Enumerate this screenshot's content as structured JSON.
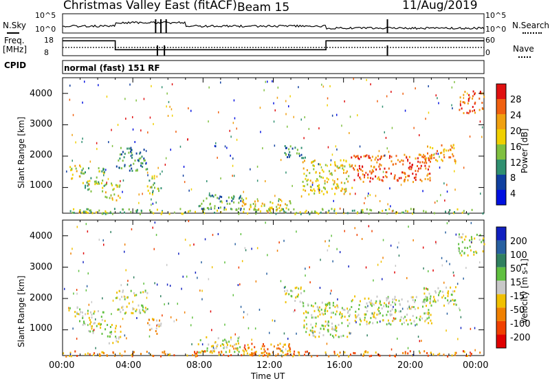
{
  "header": {
    "station": "Christmas Valley East (fitACF)",
    "beam": "Beam 15",
    "date": "11/Aug/2019"
  },
  "noise_panel": {
    "left_label": "N.Sky",
    "right_label": "N.Search",
    "left_ticks": [
      "10^5",
      "10^0"
    ],
    "right_ticks": [
      "10^5",
      "10^0"
    ]
  },
  "freq_panel": {
    "left_label_1": "Freq.",
    "left_label_2": "[MHz]",
    "left_ticks": [
      "18",
      "8"
    ],
    "right_label": "Nave",
    "right_ticks": [
      "60",
      "0"
    ],
    "freq_steps": [
      {
        "start_hour": 0,
        "end_hour": 3.0,
        "freq_mhz": 16
      },
      {
        "start_hour": 3.0,
        "end_hour": 15.0,
        "freq_mhz": 10
      },
      {
        "start_hour": 15.0,
        "end_hour": 24.0,
        "freq_mhz": 16
      }
    ]
  },
  "cpid": {
    "label": "CPID",
    "value": "normal (fast) 151 RF"
  },
  "chart_data": [
    {
      "type": "heatmap",
      "name": "power",
      "xlabel": "",
      "ylabel": "Slant Range [km]",
      "xlim": [
        0,
        24
      ],
      "ylim": [
        180,
        4500
      ],
      "y_ticks": [
        "1000",
        "2000",
        "3000",
        "4000"
      ],
      "colorbar": {
        "label": "Power [dB]",
        "ticks": [
          "28",
          "24",
          "20",
          "16",
          "12",
          "8",
          "4"
        ],
        "colors": [
          "#e01010",
          "#f06010",
          "#f0a010",
          "#f0d000",
          "#80c040",
          "#309070",
          "#1040a0",
          "#0010e0"
        ]
      },
      "regions": [
        {
          "t0": 0.3,
          "t1": 1.0,
          "r0": 1300,
          "r1": 1750,
          "level": 3
        },
        {
          "t0": 1.0,
          "t1": 2.4,
          "r0": 900,
          "r1": 1650,
          "level": 4
        },
        {
          "t0": 2.4,
          "t1": 3.3,
          "r0": 600,
          "r1": 1200,
          "level": 3
        },
        {
          "t0": 3.0,
          "t1": 4.8,
          "r0": 1550,
          "r1": 2300,
          "level": 5
        },
        {
          "t0": 4.8,
          "t1": 5.6,
          "r0": 800,
          "r1": 1400,
          "level": 4
        },
        {
          "t0": 7.7,
          "t1": 10.2,
          "r0": 300,
          "r1": 800,
          "level": 5
        },
        {
          "t0": 10.0,
          "t1": 13.0,
          "r0": 250,
          "r1": 700,
          "level": 3
        },
        {
          "t0": 12.6,
          "t1": 13.8,
          "r0": 1900,
          "r1": 2400,
          "level": 5
        },
        {
          "t0": 13.6,
          "t1": 16.5,
          "r0": 800,
          "r1": 1900,
          "level": 3
        },
        {
          "t0": 16.4,
          "t1": 21.0,
          "r0": 1200,
          "r1": 2100,
          "level": 1
        },
        {
          "t0": 20.5,
          "t1": 22.4,
          "r0": 1800,
          "r1": 2400,
          "level": 2
        },
        {
          "t0": 22.5,
          "t1": 24.0,
          "r0": 3400,
          "r1": 4100,
          "level": 1
        },
        {
          "t0": 0,
          "t1": 24,
          "r0": 180,
          "r1": 350,
          "level": 4
        }
      ]
    },
    {
      "type": "heatmap",
      "name": "velocity",
      "xlabel": "Time UT",
      "ylabel": "Slant Range [km]",
      "xlim": [
        0,
        24
      ],
      "ylim": [
        180,
        4500
      ],
      "x_ticks": [
        "00:00",
        "04:00",
        "08:00",
        "12:00",
        "16:00",
        "20:00",
        "00:00"
      ],
      "y_ticks": [
        "1000",
        "2000",
        "3000",
        "4000"
      ],
      "colorbar": {
        "label": "Velocity [m s-1]",
        "ticks": [
          "200",
          "100",
          "50",
          "15",
          "-15",
          "-50",
          "-100",
          "-200"
        ],
        "colors": [
          "#1020c0",
          "#2860a0",
          "#308060",
          "#60c040",
          "#c8c8c8",
          "#f0c000",
          "#f08000",
          "#f04000",
          "#e00000"
        ]
      },
      "regions": [
        {
          "t0": 0.3,
          "t1": 1.0,
          "r0": 1300,
          "r1": 1750,
          "level": 4
        },
        {
          "t0": 1.0,
          "t1": 2.4,
          "r0": 900,
          "r1": 1650,
          "level": 4
        },
        {
          "t0": 2.4,
          "t1": 3.3,
          "r0": 600,
          "r1": 1200,
          "level": 4
        },
        {
          "t0": 3.0,
          "t1": 4.8,
          "r0": 1550,
          "r1": 2300,
          "level": 4
        },
        {
          "t0": 4.8,
          "t1": 5.6,
          "r0": 800,
          "r1": 1400,
          "level": 5
        },
        {
          "t0": 7.7,
          "t1": 10.2,
          "r0": 300,
          "r1": 800,
          "level": 4
        },
        {
          "t0": 9.5,
          "t1": 13.0,
          "r0": 250,
          "r1": 600,
          "level": 6
        },
        {
          "t0": 12.6,
          "t1": 13.8,
          "r0": 1900,
          "r1": 2400,
          "level": 4
        },
        {
          "t0": 13.6,
          "t1": 16.5,
          "r0": 800,
          "r1": 1900,
          "level": 4
        },
        {
          "t0": 16.4,
          "t1": 21.0,
          "r0": 1200,
          "r1": 2100,
          "level": 4
        },
        {
          "t0": 20.5,
          "t1": 22.4,
          "r0": 1800,
          "r1": 2400,
          "level": 4
        },
        {
          "t0": 22.5,
          "t1": 24.0,
          "r0": 3400,
          "r1": 4100,
          "level": 4
        },
        {
          "t0": 0,
          "t1": 24,
          "r0": 180,
          "r1": 350,
          "level": 6
        }
      ]
    }
  ]
}
